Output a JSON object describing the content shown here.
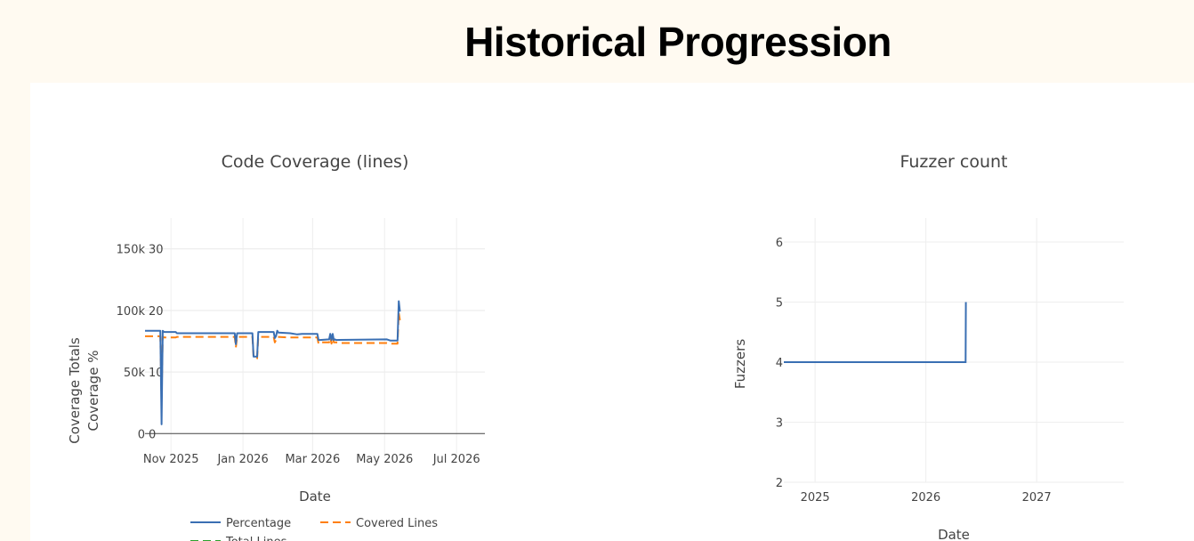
{
  "page": {
    "title": "Historical Progression"
  },
  "chart_data": [
    {
      "type": "line",
      "title": "Code Coverage (lines)",
      "xlabel": "Date",
      "ylabel_pct": "Coverage %",
      "ylabel_totals": "Coverage Totals",
      "x_ticks": [
        "Nov 2025",
        "Jan 2026",
        "Mar 2026",
        "May 2026",
        "Jul 2026"
      ],
      "xlim": [
        "2025-10-10",
        "2026-07-25"
      ],
      "y_pct_ticks": [
        "0",
        "10",
        "20",
        "30"
      ],
      "y_pct_lim": [
        -4,
        35
      ],
      "y_tot_ticks": [
        "0",
        "50k",
        "100k",
        "150k"
      ],
      "y_tot_lim": [
        -20000,
        175000
      ],
      "grid": true,
      "legend_position": "bottom",
      "series": [
        {
          "name": "Percentage",
          "axis": "pct",
          "color": "#3a6fb3",
          "dash": "solid",
          "x": [
            "2025-10-10",
            "2025-10-23",
            "2025-10-24",
            "2025-10-25",
            "2025-10-26",
            "2025-11-05",
            "2025-11-06",
            "2025-12-25",
            "2025-12-26",
            "2025-12-27",
            "2026-01-09",
            "2026-01-10",
            "2026-01-11",
            "2026-01-13",
            "2026-01-14",
            "2026-01-27",
            "2026-01-28",
            "2026-01-29",
            "2026-01-30",
            "2026-01-31",
            "2026-02-10",
            "2026-02-16",
            "2026-02-20",
            "2026-03-05",
            "2026-03-06",
            "2026-03-07",
            "2026-03-15",
            "2026-03-16",
            "2026-03-17",
            "2026-03-18",
            "2026-03-19",
            "2026-03-20",
            "2026-03-21",
            "2026-05-03",
            "2026-05-06",
            "2026-05-12",
            "2026-05-13",
            "2026-05-14"
          ],
          "y": [
            16.7,
            16.7,
            1.5,
            16.7,
            16.5,
            16.5,
            16.3,
            16.3,
            14.5,
            16.3,
            16.3,
            12.5,
            12.5,
            12.5,
            16.5,
            16.5,
            15.5,
            15.8,
            16.7,
            16.4,
            16.3,
            16.1,
            16.2,
            16.2,
            15.2,
            15.2,
            15.3,
            16.2,
            15.2,
            16.2,
            15.2,
            15.3,
            15.2,
            15.3,
            15.1,
            15.1,
            21.5,
            19.8
          ]
        },
        {
          "name": "Covered Lines",
          "axis": "tot",
          "color": "#ff7f0e",
          "dash": "dashed",
          "x": [
            "2025-10-10",
            "2025-10-23",
            "2025-10-24",
            "2025-10-25",
            "2025-10-26",
            "2025-11-05",
            "2025-11-06",
            "2025-12-25",
            "2025-12-26",
            "2025-12-27",
            "2026-01-09",
            "2026-01-10",
            "2026-01-11",
            "2026-01-13",
            "2026-01-14",
            "2026-01-27",
            "2026-01-28",
            "2026-01-29",
            "2026-01-30",
            "2026-02-10",
            "2026-02-20",
            "2026-03-05",
            "2026-03-06",
            "2026-03-07",
            "2026-03-15",
            "2026-03-16",
            "2026-03-17",
            "2026-03-18",
            "2026-03-19",
            "2026-03-21",
            "2026-03-25",
            "2026-05-03",
            "2026-05-06",
            "2026-05-12",
            "2026-05-13",
            "2026-05-14"
          ],
          "y": [
            79000,
            79000,
            28000,
            79000,
            78000,
            78000,
            78500,
            78500,
            70000,
            78500,
            78500,
            62000,
            61000,
            61000,
            78500,
            78500,
            74000,
            76000,
            78500,
            78000,
            78000,
            78000,
            73000,
            74000,
            74000,
            78000,
            73000,
            78000,
            74000,
            74000,
            73500,
            73500,
            73000,
            73000,
            98000,
            92000
          ]
        },
        {
          "name": "Total Lines",
          "axis": "tot",
          "color": "#2ca02c",
          "dash": "dashed",
          "x": [],
          "y": []
        }
      ]
    },
    {
      "type": "line",
      "title": "Fuzzer count",
      "xlabel": "Date",
      "ylabel": "Fuzzers",
      "x_ticks": [
        "2025",
        "2026",
        "2027"
      ],
      "xlim": [
        "2024-09-20",
        "2027-10-15"
      ],
      "y_ticks": [
        "2",
        "3",
        "4",
        "5",
        "6"
      ],
      "ylim": [
        2,
        6.4
      ],
      "grid": true,
      "series": [
        {
          "color": "#3a6fb3",
          "x": [
            "2024-09-20",
            "2026-05-12",
            "2026-05-13"
          ],
          "y": [
            4,
            4,
            5
          ]
        }
      ]
    }
  ]
}
